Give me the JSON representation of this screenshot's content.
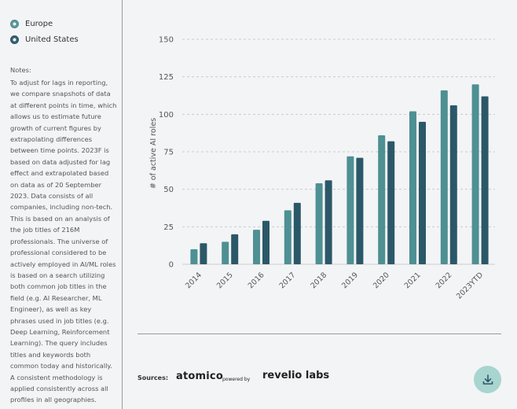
{
  "legend": [
    {
      "label": "Europe",
      "color": "#4e9093"
    },
    {
      "label": "United States",
      "color": "#2b5868"
    }
  ],
  "notes": {
    "title": "Notes:",
    "text": "To adjust for lags in reporting, we compare snapshots of data at different points in time, which allows us to estimate future growth of current figures by extrapolating differences between time points. 2023F is based on data adjusted for lag effect and extrapolated based on data as of 20 September 2023. Data consists of all companies, including non-tech. This is based on an analysis of the job titles of 216M professionals. The universe of professional considered to be actively employed in AI/ML roles is based on a search utilizing both common job titles in the field (e.g. AI Researcher, ML Engineer), as well as key phrases used in job titles (e.g. Deep Learning, Reinforcement Learning). The query includes titles and keywords both common today and historically. A consistent methodology is applied consistently across all profiles in all geographies."
  },
  "footer": {
    "sources_label": "Sources:",
    "logo_atomico": "atomico",
    "logo_powered": "powered by",
    "logo_revelio": "revelio labs"
  },
  "download_icon": "download-icon",
  "chart_data": {
    "type": "bar",
    "categories": [
      "2014",
      "2015",
      "2016",
      "2017",
      "2018",
      "2019",
      "2020",
      "2021",
      "2022",
      "2023YTD"
    ],
    "series": [
      {
        "name": "Europe",
        "color": "#4e9093",
        "values": [
          10,
          15,
          23,
          36,
          54,
          72,
          86,
          102,
          116,
          120
        ]
      },
      {
        "name": "United States",
        "color": "#2b5868",
        "values": [
          14,
          20,
          29,
          41,
          56,
          71,
          82,
          95,
          106,
          112
        ]
      }
    ],
    "ylabel": "# of active AI roles",
    "ylim": [
      0,
      150
    ],
    "yticks": [
      0,
      25,
      50,
      75,
      100,
      125,
      150
    ],
    "grid": true
  }
}
